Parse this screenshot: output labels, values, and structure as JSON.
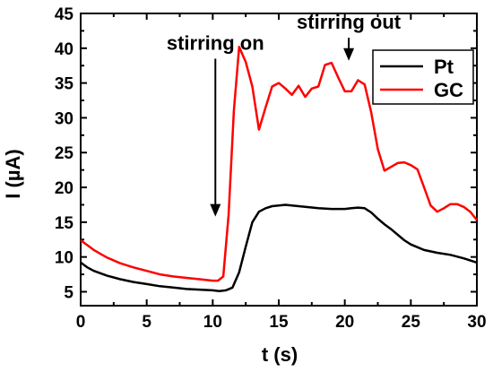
{
  "chart_data": {
    "type": "line",
    "title": "",
    "xlabel": "t (s)",
    "ylabel": "I (µA)",
    "xlim": [
      0,
      30
    ],
    "ylim": [
      3,
      45
    ],
    "xticks": [
      0,
      5,
      10,
      15,
      20,
      25,
      30
    ],
    "yticks": [
      5,
      10,
      15,
      20,
      25,
      30,
      35,
      40,
      45
    ],
    "grid": false,
    "legend_position": "top-right",
    "series": [
      {
        "name": "Pt",
        "color": "#000000",
        "x": [
          0,
          0.5,
          1,
          2,
          3,
          4,
          5,
          6,
          7,
          8,
          9,
          10,
          10.5,
          11,
          11.5,
          12,
          12.5,
          13,
          13.5,
          14,
          14.5,
          15,
          15.5,
          16,
          17,
          18,
          19,
          20,
          20.5,
          21,
          21.5,
          22,
          22.5,
          23,
          23.5,
          24,
          24.5,
          25,
          26,
          27,
          28,
          29,
          30
        ],
        "y": [
          9.2,
          8.5,
          8.0,
          7.3,
          6.8,
          6.4,
          6.1,
          5.8,
          5.6,
          5.4,
          5.3,
          5.2,
          5.1,
          5.2,
          5.6,
          7.8,
          11.5,
          15.0,
          16.5,
          17.0,
          17.3,
          17.4,
          17.5,
          17.4,
          17.2,
          17.0,
          16.9,
          16.9,
          17.0,
          17.1,
          17.0,
          16.4,
          15.5,
          14.7,
          14.0,
          13.2,
          12.4,
          11.8,
          11.0,
          10.6,
          10.3,
          9.8,
          9.2
        ]
      },
      {
        "name": "GC",
        "color": "#ff0000",
        "x": [
          0,
          1,
          2,
          3,
          4,
          5,
          6,
          7,
          8,
          9,
          10,
          10.4,
          10.8,
          11.2,
          11.6,
          12,
          12.5,
          13,
          13.5,
          14,
          14.5,
          15,
          15.5,
          16,
          16.5,
          17,
          17.5,
          18,
          18.5,
          19,
          19.5,
          20,
          20.5,
          21,
          21.5,
          22,
          22.5,
          23,
          24,
          24.5,
          25,
          25.5,
          26,
          26.5,
          27,
          27.5,
          28,
          28.5,
          29,
          29.5,
          30
        ],
        "y": [
          12.4,
          11.0,
          9.9,
          9.1,
          8.5,
          8.0,
          7.5,
          7.2,
          7.0,
          6.8,
          6.6,
          6.6,
          7.2,
          16.0,
          31.0,
          40.2,
          38.0,
          34.5,
          28.3,
          31.5,
          34.5,
          35.0,
          34.2,
          33.3,
          34.6,
          33.0,
          34.2,
          34.5,
          37.6,
          37.9,
          35.8,
          33.8,
          33.8,
          35.4,
          34.8,
          30.8,
          25.5,
          22.4,
          23.5,
          23.6,
          23.2,
          22.6,
          20.0,
          17.4,
          16.5,
          17.0,
          17.6,
          17.6,
          17.2,
          16.5,
          15.3
        ]
      }
    ],
    "annotations": [
      {
        "text": "stirring on",
        "arrow_x": 10.2,
        "arrow_from_y": 38.5,
        "arrow_to_y": 15.8
      },
      {
        "text": "stirring out",
        "arrow_x": 20.3,
        "arrow_from_y": 41.5,
        "arrow_to_y": 38.2
      }
    ]
  }
}
